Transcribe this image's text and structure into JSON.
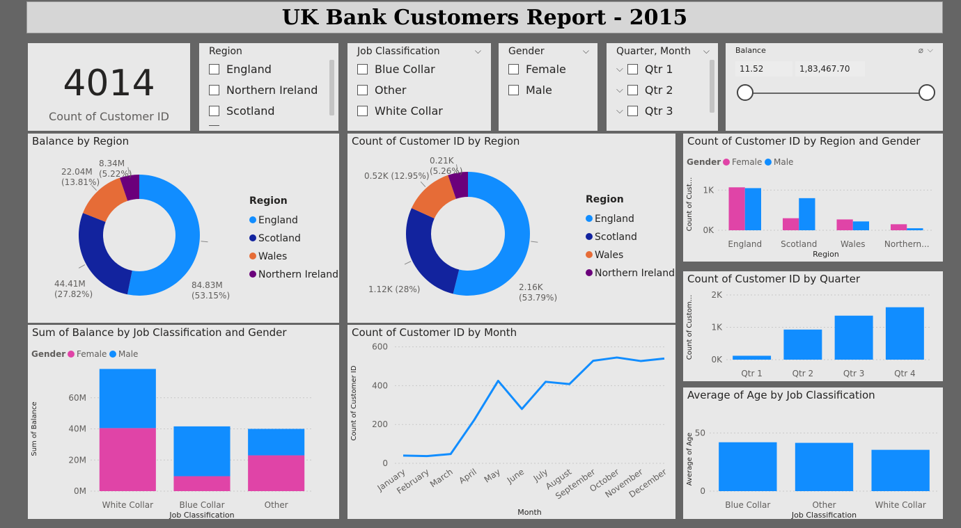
{
  "report": {
    "title": "UK Bank Customers Report - 2015"
  },
  "card": {
    "value": "4014",
    "label": "Count of Customer ID"
  },
  "slicers": {
    "region": {
      "title": "Region",
      "items": [
        "England",
        "Northern Ireland",
        "Scotland"
      ]
    },
    "job": {
      "title": "Job Classification",
      "items": [
        "Blue Collar",
        "Other",
        "White Collar"
      ]
    },
    "gender": {
      "title": "Gender",
      "items": [
        "Female",
        "Male"
      ]
    },
    "quarter": {
      "title": "Quarter, Month",
      "items": [
        "Qtr 1",
        "Qtr 2",
        "Qtr 3"
      ]
    },
    "balance": {
      "title": "Balance",
      "min": "11.52",
      "max": "1,83,467.70"
    }
  },
  "colors": {
    "england": "#118dff",
    "scotland": "#12239e",
    "wales": "#e66c37",
    "northern_ireland": "#6b007b",
    "female": "#e044a7",
    "male": "#118dff"
  },
  "chart_data": [
    {
      "id": "balance_by_region",
      "type": "pie",
      "title": "Balance by Region",
      "legend_title": "Region",
      "categories": [
        "England",
        "Scotland",
        "Wales",
        "Northern Ireland"
      ],
      "values": [
        84.83,
        44.41,
        22.04,
        8.34
      ],
      "labels": [
        "84.83M",
        "44.41M",
        "22.04M",
        "8.34M"
      ],
      "percents": [
        "(53.15%)",
        "(27.82%)",
        "(13.81%)",
        "(5.22%)"
      ]
    },
    {
      "id": "count_by_region",
      "type": "pie",
      "title": "Count of Customer ID by Region",
      "legend_title": "Region",
      "categories": [
        "England",
        "Scotland",
        "Wales",
        "Northern Ireland"
      ],
      "values": [
        2160,
        1120,
        520,
        210
      ],
      "labels": [
        "2.16K",
        "1.12K (28%)",
        "0.52K (12.95%)",
        "0.21K"
      ],
      "percents": [
        "(53.79%)",
        "",
        "",
        "(5.26%)"
      ]
    },
    {
      "id": "count_by_region_gender",
      "type": "bar",
      "title": "Count of Customer ID by Region and Gender",
      "legend_title": "Gender",
      "xlabel": "Region",
      "ylabel": "Count of Cust...",
      "categories": [
        "England",
        "Scotland",
        "Wales",
        "Northern..."
      ],
      "series": [
        {
          "name": "Female",
          "values": [
            1070,
            300,
            270,
            150
          ]
        },
        {
          "name": "Male",
          "values": [
            1050,
            800,
            220,
            50
          ]
        }
      ],
      "ylim": [
        0,
        1300
      ],
      "yticks": [
        0,
        1000
      ],
      "ytick_labels": [
        "0K",
        "1K"
      ]
    },
    {
      "id": "count_by_quarter",
      "type": "bar",
      "title": "Count of Customer ID by Quarter",
      "ylabel": "Count of Custom...",
      "categories": [
        "Qtr 1",
        "Qtr 2",
        "Qtr 3",
        "Qtr 4"
      ],
      "values": [
        120,
        930,
        1360,
        1620
      ],
      "ylim": [
        0,
        2000
      ],
      "yticks": [
        0,
        1000,
        2000
      ],
      "ytick_labels": [
        "0K",
        "1K",
        "2K"
      ]
    },
    {
      "id": "balance_by_job_gender",
      "type": "bar",
      "title": "Sum of Balance by Job Classification and Gender",
      "legend_title": "Gender",
      "xlabel": "Job Classification",
      "ylabel": "Sum of Balance",
      "categories": [
        "White Collar",
        "Blue Collar",
        "Other"
      ],
      "series": [
        {
          "name": "Female",
          "values": [
            40.5,
            9.6,
            23
          ]
        },
        {
          "name": "Male",
          "values": [
            38,
            32,
            17
          ]
        }
      ],
      "ylim": [
        0,
        80
      ],
      "yticks": [
        0,
        20,
        40,
        60
      ],
      "ytick_labels": [
        "0M",
        "20M",
        "40M",
        "60M"
      ]
    },
    {
      "id": "count_by_month",
      "type": "line",
      "title": "Count of Customer ID by Month",
      "xlabel": "Month",
      "ylabel": "Count of Customer ID",
      "categories": [
        "January",
        "February",
        "March",
        "April",
        "May",
        "June",
        "July",
        "August",
        "September",
        "October",
        "November",
        "December"
      ],
      "values": [
        40,
        37,
        48,
        225,
        425,
        280,
        420,
        408,
        528,
        545,
        527,
        540
      ],
      "ylim": [
        0,
        620
      ],
      "yticks": [
        0,
        200,
        400,
        600
      ]
    },
    {
      "id": "age_by_job",
      "type": "bar",
      "title": "Average of Age by Job Classification",
      "xlabel": "Job Classification",
      "ylabel": "Average of Age",
      "categories": [
        "Blue Collar",
        "Other",
        "White Collar"
      ],
      "values": [
        42,
        41.5,
        35.5
      ],
      "ylim": [
        0,
        55
      ],
      "yticks": [
        0,
        50
      ]
    }
  ]
}
